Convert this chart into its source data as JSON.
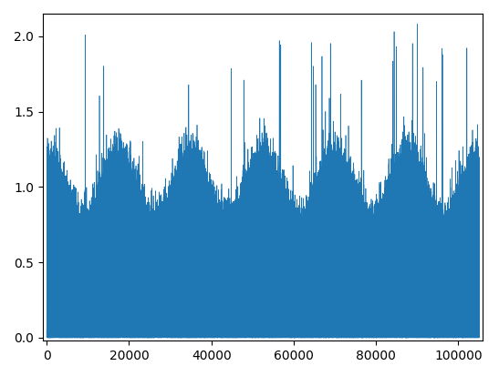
{
  "n_points": 105120,
  "seed": 42,
  "line_color": "#1f77b4",
  "background_color": "#ffffff",
  "xlim": [
    -1000,
    106000
  ],
  "ylim": [
    -0.02,
    2.15
  ],
  "yticks": [
    0.0,
    0.5,
    1.0,
    1.5,
    2.0
  ],
  "xticks": [
    0,
    20000,
    40000,
    60000,
    80000,
    100000
  ],
  "figsize": [
    5.47,
    4.13
  ],
  "dpi": 100
}
